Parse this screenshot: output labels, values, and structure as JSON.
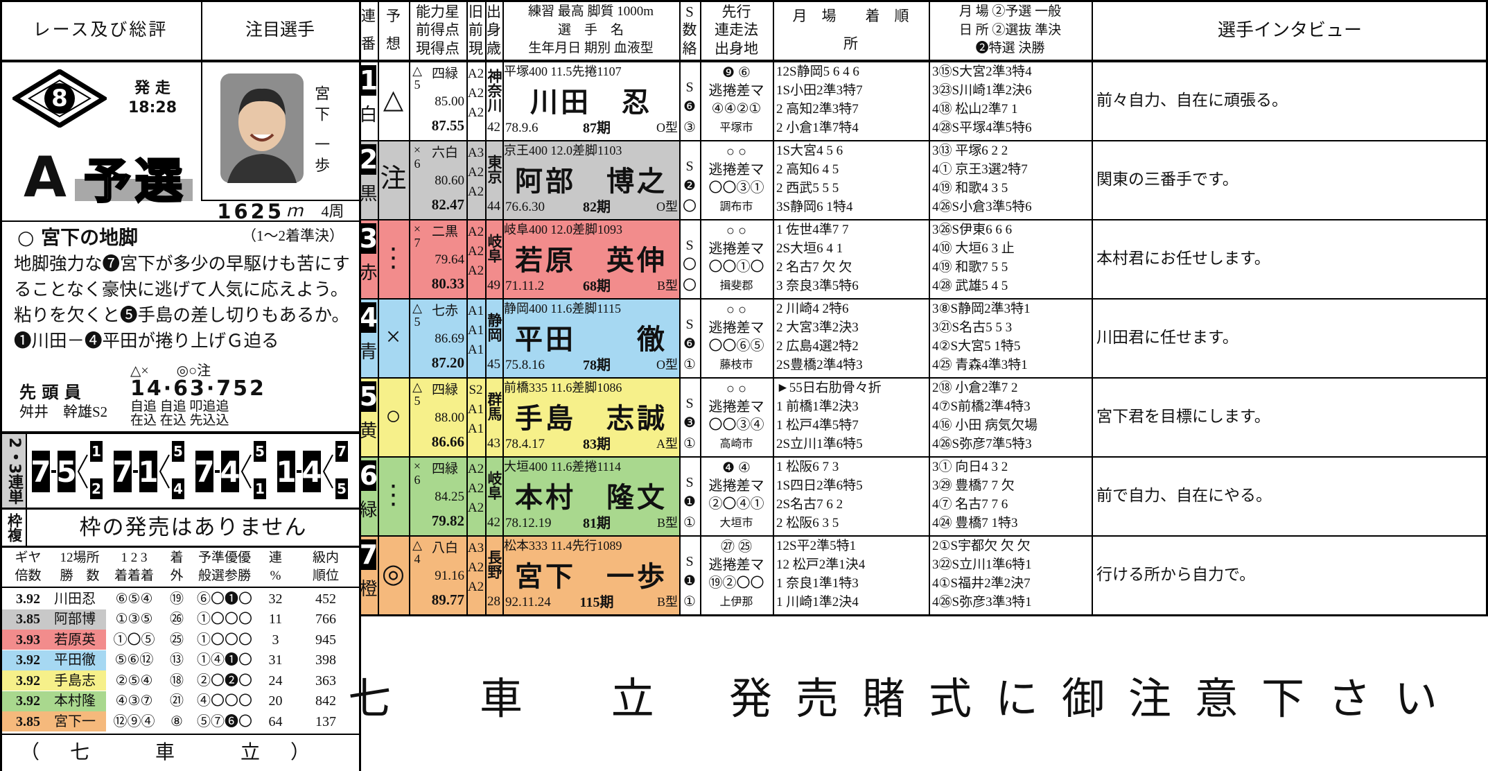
{
  "left": {
    "header": [
      "レース及び総評",
      "注目選手"
    ],
    "race": {
      "number": "8",
      "start_label": "発 走",
      "start_time": "18:28",
      "grade": "A",
      "stage": "予選"
    },
    "featured": {
      "name": "宮下 一歩",
      "distance": "1625",
      "distance_unit": "ｍ",
      "laps": "4周"
    },
    "comment": {
      "title": "○ 宮下の地脚",
      "note": "（1～2着準決）",
      "text": "地脚強力な❼宮下が多少の早駆けも苦にすることなく豪快に逃げて人気に応えよう。粘りを欠くと❺手島の差し切りもあるか。❶川田－❹平田が捲り上げＧ迫る"
    },
    "lead": {
      "label": "先 頭 員",
      "name": "舛井　幹雄S2",
      "marks": "△×　　◎○注",
      "line": "14·63·752",
      "styles1": "自追 自追 叩追追",
      "styles2": "在込 在込 先込込"
    },
    "trifecta": {
      "label": "2・3連単",
      "picks": [
        {
          "a": "7",
          "b": "5",
          "c": [
            "1",
            "2"
          ]
        },
        {
          "a": "7",
          "b": "1",
          "c": [
            "5",
            "4"
          ]
        },
        {
          "a": "7",
          "b": "4",
          "c": [
            "5",
            "1"
          ]
        },
        {
          "a": "1",
          "b": "4",
          "c": [
            "7",
            "5"
          ]
        }
      ]
    },
    "bracket": {
      "label": "枠複",
      "text": "枠の発売はありません"
    },
    "stats": {
      "headers": [
        [
          "ギヤ",
          "倍数"
        ],
        [
          "12場所",
          "勝　数"
        ],
        [
          "1 2 3",
          "着着着"
        ],
        [
          "着",
          "外"
        ],
        [
          "予準優優",
          "般選参勝"
        ],
        [
          "連",
          "%"
        ],
        [
          "級内",
          "順位"
        ]
      ],
      "rows": [
        [
          "3.92",
          "川田忍",
          "⑥⑤④",
          "⑲",
          "⑥〇❶〇",
          "32",
          "452"
        ],
        [
          "3.85",
          "阿部博",
          "①③⑤",
          "㉖",
          "①〇〇〇",
          "11",
          "766"
        ],
        [
          "3.93",
          "若原英",
          "①〇⑤",
          "㉕",
          "①〇〇〇",
          "3",
          "945"
        ],
        [
          "3.92",
          "平田徹",
          "⑤⑥⑫",
          "⑬",
          "①④❶〇",
          "31",
          "398"
        ],
        [
          "3.92",
          "手島志",
          "②⑤④",
          "⑱",
          "②〇❷〇",
          "24",
          "363"
        ],
        [
          "3.92",
          "本村隆",
          "④③⑦",
          "㉑",
          "④〇〇〇",
          "20",
          "842"
        ],
        [
          "3.85",
          "宮下一",
          "⑫⑨④",
          "⑧",
          "⑤⑦❻〇",
          "64",
          "137"
        ]
      ]
    },
    "footer": "（七 車 立）"
  },
  "table": {
    "headers": [
      [
        "連",
        "番"
      ],
      [
        "予",
        "想"
      ],
      [
        "能力星",
        "前得点",
        "現得点"
      ],
      [
        "旧",
        "前",
        "現"
      ],
      [
        "出",
        "身",
        "歳"
      ],
      [
        "練習 最高 脚質 1000m",
        "選　手　名",
        "生年月日 期別 血液型"
      ],
      [
        "S",
        "数",
        "絡"
      ],
      [
        "先行",
        "連走法",
        "出身地"
      ],
      [
        "月　場　　着　順",
        "所"
      ],
      [
        "月 場 ②予選 一般",
        "日 所 ②選抜 準決",
        "❷特選 決勝"
      ],
      [
        "選手インタビュー"
      ]
    ],
    "riders": [
      {
        "num": "1",
        "color_name": "白",
        "bg": "#ffffff",
        "pred": "△",
        "star": "△",
        "stars": "5",
        "rank": "四緑",
        "prev": "85.00",
        "cur": "87.55",
        "classes": [
          "A2",
          "A2",
          "A2"
        ],
        "pref": "神奈川",
        "age": "42",
        "practice": "平塚400 11.5先捲1107",
        "name": "川田　忍",
        "birth": "78.9.6",
        "term": "87期",
        "blood": "O型",
        "s": "S",
        "snum": "❻",
        "s3": "③",
        "senko": "❾ ⑥",
        "style": "逃捲差マ",
        "rensou": "④④②①",
        "hometown": "平塚市",
        "recent": [
          "12S静岡5 6 4 6",
          "1S小田2準3特7",
          "2 高知2準3特7",
          "2 小倉1準7特4"
        ],
        "recent2": [
          "3⑮S大宮2準3特4",
          "3㉓S川崎1準2決6",
          "4⑱ 松山2準7 1",
          "4㉘S平塚4準5特6"
        ],
        "interview": "前々自力、自在に頑張る。"
      },
      {
        "num": "2",
        "color_name": "黒",
        "bg": "#c8c8c8",
        "pred": "注",
        "star": "×",
        "stars": "6",
        "rank": "六白",
        "prev": "80.60",
        "cur": "82.47",
        "classes": [
          "A3",
          "A2",
          "A2"
        ],
        "pref": "東京",
        "age": "44",
        "practice": "京王400 12.0差脚1103",
        "name": "阿部　博之",
        "birth": "76.6.30",
        "term": "82期",
        "blood": "O型",
        "s": "S",
        "snum": "❷",
        "s3": "〇",
        "senko": "○ ○",
        "style": "逃捲差マ",
        "rensou": "〇〇③①",
        "hometown": "調布市",
        "recent": [
          "1S大宮4 5 6",
          "2 高知6 4 5",
          "2 西武5 5 5",
          "3S静岡6 1特4"
        ],
        "recent2": [
          "3⑬ 平塚6 2 2",
          "4① 京王3選2特7",
          "4⑲ 和歌4 3 5",
          "4㉖S小倉3準5特6"
        ],
        "interview": "関東の三番手です。"
      },
      {
        "num": "3",
        "color_name": "赤",
        "bg": "#f28c8c",
        "pred": "⋮",
        "star": "×",
        "stars": "7",
        "rank": "二黒",
        "prev": "79.64",
        "cur": "80.33",
        "classes": [
          "A2",
          "A2",
          "A2"
        ],
        "pref": "岐阜",
        "age": "49",
        "practice": "岐阜400 12.0差脚1093",
        "name": "若原　英伸",
        "birth": "71.11.2",
        "term": "68期",
        "blood": "B型",
        "s": "S",
        "snum": "〇",
        "s3": "〇",
        "senko": "○ ○",
        "style": "逃捲差マ",
        "rensou": "〇〇①〇",
        "hometown": "揖斐郡",
        "recent": [
          "1 佐世4準7 7",
          "2S大垣6 4 1",
          "2 名古7 欠 欠",
          "3 奈良3準5特6"
        ],
        "recent2": [
          "3㉖S伊東6 6 6",
          "4⑩ 大垣6 3 止",
          "4⑲ 和歌7 5 5",
          "4㉘ 武雄5 4 5"
        ],
        "interview": "本村君にお任せします。"
      },
      {
        "num": "4",
        "color_name": "青",
        "bg": "#a6d8f2",
        "pred": "×",
        "star": "△",
        "stars": "5",
        "rank": "七赤",
        "prev": "86.69",
        "cur": "87.20",
        "classes": [
          "A1",
          "A1",
          "A1"
        ],
        "pref": "静岡",
        "age": "45",
        "practice": "静岡400 11.6差脚1115",
        "name": "平田　　徹",
        "birth": "75.8.16",
        "term": "78期",
        "blood": "O型",
        "s": "S",
        "snum": "❻",
        "s3": "①",
        "senko": "○ ○",
        "style": "逃捲差マ",
        "rensou": "〇〇⑥⑤",
        "hometown": "藤枝市",
        "recent": [
          "2 川崎4 2特6",
          "2 大宮3準2決3",
          "2 広島4選2特2",
          "2S豊橋2準4特3"
        ],
        "recent2": [
          "3⑧S静岡2準3特1",
          "3㉑S名古5 5 3",
          "4②S大宮5 1特5",
          "4㉕ 青森4準3特1"
        ],
        "interview": "川田君に任せます。"
      },
      {
        "num": "5",
        "color_name": "黄",
        "bg": "#f6f08a",
        "pred": "○",
        "star": "△",
        "stars": "5",
        "rank": "四緑",
        "prev": "88.00",
        "cur": "86.66",
        "classes": [
          "S2",
          "A1",
          "A1"
        ],
        "pref": "群馬",
        "age": "43",
        "practice": "前橋335 11.6差脚1086",
        "name": "手島　志誠",
        "birth": "78.4.17",
        "term": "83期",
        "blood": "A型",
        "s": "S",
        "snum": "❸",
        "s3": "①",
        "senko": "○ ○",
        "style": "逃捲差マ",
        "rensou": "〇〇③④",
        "hometown": "高崎市",
        "recent": [
          "►55日右肋骨々折",
          "1 前橋1準2決3",
          "1 松戸4準5特7",
          "2S立川1準6特5"
        ],
        "recent2": [
          "2⑱ 小倉2準7 2",
          "4⑦S前橋2準4特3",
          "4⑯ 小田 病気欠場",
          "4㉖S弥彦7準5特3"
        ],
        "interview": "宮下君を目標にします。"
      },
      {
        "num": "6",
        "color_name": "緑",
        "bg": "#a9d88e",
        "pred": "⋮",
        "star": "×",
        "stars": "6",
        "rank": "四緑",
        "prev": "84.25",
        "cur": "79.82",
        "classes": [
          "A2",
          "A2",
          "A2"
        ],
        "pref": "岐阜",
        "age": "42",
        "practice": "大垣400 11.6差捲1114",
        "name": "本村　隆文",
        "birth": "78.12.19",
        "term": "81期",
        "blood": "B型",
        "s": "S",
        "snum": "❶",
        "s3": "①",
        "senko": "❹ ④",
        "style": "逃捲差マ",
        "rensou": "②〇④①",
        "hometown": "大垣市",
        "recent": [
          "1 松阪6 7 3",
          "1S四日2準6特5",
          "2S名古7 6 2",
          "2 松阪6 3 5"
        ],
        "recent2": [
          "3① 向日4 3 2",
          "3㉙ 豊橋7 7 欠",
          "4⑦ 名古7 7 6",
          "4㉔ 豊橋7 1特3"
        ],
        "interview": "前で自力、自在にやる。"
      },
      {
        "num": "7",
        "color_name": "橙",
        "bg": "#f5b97c",
        "pred": "◎",
        "star": "△",
        "stars": "4",
        "rank": "八白",
        "prev": "91.16",
        "cur": "89.77",
        "classes": [
          "A3",
          "A2",
          "A2"
        ],
        "pref": "長野",
        "age": "28",
        "practice": "松本333 11.4先行1089",
        "name": "宮下　一歩",
        "birth": "92.11.24",
        "term": "115期",
        "blood": "B型",
        "s": "S",
        "snum": "❶",
        "s3": "①",
        "senko": "㉗ ㉕",
        "style": "逃捲差マ",
        "rensou": "⑲②〇〇",
        "hometown": "上伊那",
        "recent": [
          "12S平2準5特1",
          "12 松戸2準1決4",
          "1 奈良1準1特3",
          "1 川崎1準2決4"
        ],
        "recent2": [
          "2①S宇都欠 欠 欠",
          "3㉒S立川1準6特1",
          "4①S福井2準2決7",
          "4㉖S弥彦3準3特1"
        ],
        "interview": "行ける所から自力で。"
      }
    ]
  },
  "banner": [
    "七 車 立",
    "発売賭式に御注意下さい"
  ]
}
